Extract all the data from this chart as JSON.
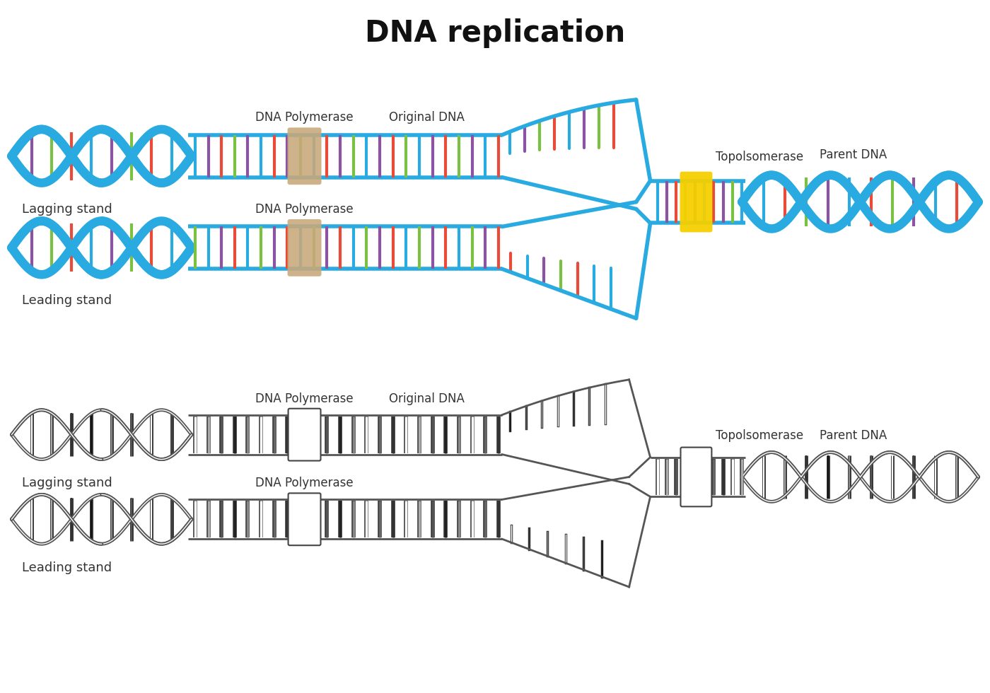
{
  "title": "DNA replication",
  "title_fontsize": 30,
  "title_fontweight": "bold",
  "bg_color": "#ffffff",
  "dna_blue": "#29ABE2",
  "base_colors_color": [
    "#E84B37",
    "#7AC143",
    "#8B54A2",
    "#29ABE2"
  ],
  "polymerase_box_color": "#C8A87A",
  "topoisomerase_box_color": "#F5D000",
  "text_color": "#333333",
  "label_fontsize": 12,
  "labels": {
    "dna_polymerase": "DNA Polymerase",
    "original_dna": "Original DNA",
    "topoisomerase": "Topolsomerase",
    "parent_dna": "Parent DNA",
    "lagging": "Lagging stand",
    "leading": "Leading stand"
  }
}
